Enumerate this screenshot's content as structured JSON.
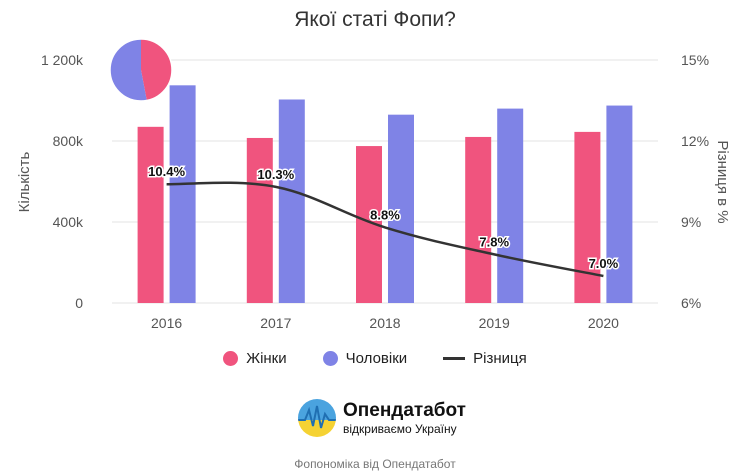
{
  "colors": {
    "women": "#f0547e",
    "men": "#7f83e6",
    "diff": "#333333",
    "grid": "#e3e3e3",
    "pie_women": "#f0547e",
    "pie_men": "#7f83e6"
  },
  "chart_data": {
    "type": "bar",
    "title": "Якої статі Фопи?",
    "categories": [
      "2016",
      "2017",
      "2018",
      "2019",
      "2020"
    ],
    "series": [
      {
        "name": "Жінки",
        "axis": "left",
        "values": [
          870000,
          815000,
          775000,
          820000,
          845000
        ]
      },
      {
        "name": "Чоловіки",
        "axis": "left",
        "values": [
          1075000,
          1005000,
          930000,
          960000,
          975000
        ]
      },
      {
        "name": "Різниця",
        "axis": "right",
        "type": "line",
        "values": [
          10.4,
          10.3,
          8.8,
          7.8,
          7.0
        ],
        "labels": [
          "10.4%",
          "10.3%",
          "8.8%",
          "7.8%",
          "7.0%"
        ]
      }
    ],
    "ylabel": "Кількість",
    "y2label": "Різниця в %",
    "ylim": [
      0,
      1200000
    ],
    "y2lim": [
      6,
      15
    ],
    "yticks": [
      "0",
      "400k",
      "800k",
      "1 200k"
    ],
    "y2ticks": [
      "6%",
      "9%",
      "12%",
      "15%"
    ],
    "pie": {
      "women_share": 0.47,
      "men_share": 0.53
    },
    "legend_position": "bottom"
  },
  "logo": {
    "name": "Опендатабот",
    "tagline": "відкриваємо Україну"
  },
  "footer": "Фопономіка від Опендатабот"
}
